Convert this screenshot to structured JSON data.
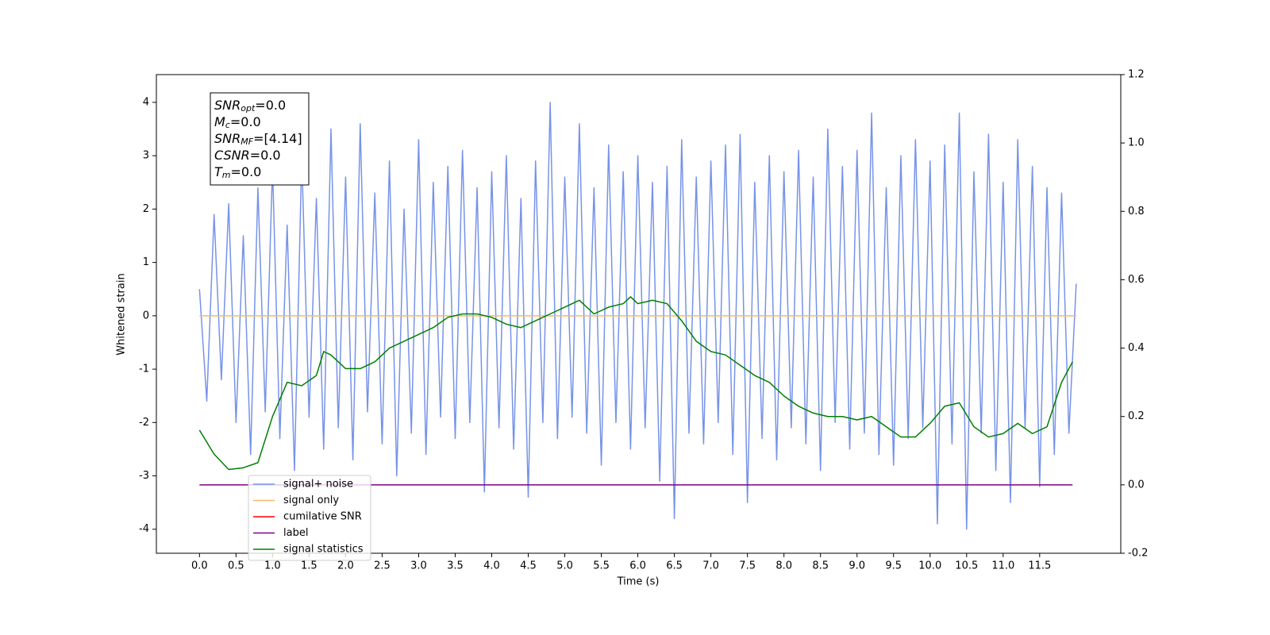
{
  "chart_data": {
    "type": "line",
    "xlabel": "Time (s)",
    "ylabel": "Whitened strain",
    "xlim": [
      -0.59,
      12.61
    ],
    "ylim": [
      -4.45,
      4.52
    ],
    "y2lim": [
      -0.2,
      1.2
    ],
    "xticks": [
      {
        "value": 0,
        "label": "0.0"
      },
      0.5,
      {
        "value": 1,
        "label": "1.0"
      },
      1.5,
      {
        "value": 2,
        "label": "2.0"
      },
      2.5,
      {
        "value": 3,
        "label": "3.0"
      },
      3.5,
      {
        "value": 4,
        "label": "4.0"
      },
      4.5,
      {
        "value": 5,
        "label": "5.0"
      },
      5.5,
      {
        "value": 6,
        "label": "6.0"
      },
      6.5,
      {
        "value": 7,
        "label": "7.0"
      },
      7.5,
      {
        "value": 8,
        "label": "8.0"
      },
      8.5,
      {
        "value": 9,
        "label": "9.0"
      },
      9.5,
      {
        "value": 10,
        "label": "10.0"
      },
      10.5,
      {
        "value": 11,
        "label": "11.0"
      },
      11.5
    ],
    "yticks": [
      -4,
      -3,
      -2,
      -1,
      0,
      1,
      2,
      3,
      4
    ],
    "y2ticks": [
      -0.2,
      {
        "value": 0,
        "label": "0.0"
      },
      0.2,
      0.4,
      0.6,
      0.8,
      {
        "value": 1,
        "label": "1.0"
      },
      1.2
    ],
    "legend": "lower left",
    "annotations": [
      {
        "main": "SNR",
        "sub": "opt",
        "rest": "=0.0"
      },
      {
        "main": "M",
        "sub": "c",
        "rest": "=0.0"
      },
      {
        "main": "SNR",
        "sub": "MF",
        "rest": "=[4.14]"
      },
      {
        "main": "CSNR",
        "sub": "",
        "rest": "=0.0"
      },
      {
        "main": "T",
        "sub": "m",
        "rest": "=0.0"
      }
    ],
    "series": [
      {
        "name": "signal+ noise",
        "color": "#7793e8",
        "axis": "y",
        "x": [
          0,
          0.1,
          0.2,
          0.3,
          0.4,
          0.5,
          0.6,
          0.7,
          0.8,
          0.9,
          1,
          1.1,
          1.2,
          1.3,
          1.4,
          1.5,
          1.6,
          1.7,
          1.8,
          1.9,
          2,
          2.1,
          2.2,
          2.3,
          2.4,
          2.5,
          2.6,
          2.7,
          2.8,
          2.9,
          3,
          3.1,
          3.2,
          3.3,
          3.4,
          3.5,
          3.6,
          3.7,
          3.8,
          3.9,
          4,
          4.1,
          4.2,
          4.3,
          4.4,
          4.5,
          4.6,
          4.7,
          4.8,
          4.9,
          5,
          5.1,
          5.2,
          5.3,
          5.4,
          5.5,
          5.6,
          5.7,
          5.8,
          5.9,
          6,
          6.1,
          6.2,
          6.3,
          6.4,
          6.5,
          6.6,
          6.7,
          6.8,
          6.9,
          7,
          7.1,
          7.2,
          7.3,
          7.4,
          7.5,
          7.6,
          7.7,
          7.8,
          7.9,
          8,
          8.1,
          8.2,
          8.3,
          8.4,
          8.5,
          8.6,
          8.7,
          8.8,
          8.9,
          9,
          9.1,
          9.2,
          9.3,
          9.4,
          9.5,
          9.6,
          9.7,
          9.8,
          9.9,
          10,
          10.1,
          10.2,
          10.3,
          10.4,
          10.5,
          10.6,
          10.7,
          10.8,
          10.9,
          11,
          11.1,
          11.2,
          11.3,
          11.4,
          11.5,
          11.6,
          11.7,
          11.8,
          11.9,
          12
        ],
        "values": [
          0.5,
          -1.6,
          1.9,
          -1.2,
          2.1,
          -2.0,
          1.5,
          -2.6,
          2.4,
          -1.8,
          2.8,
          -2.3,
          1.7,
          -2.9,
          3.0,
          -1.9,
          2.2,
          -2.5,
          3.5,
          -2.1,
          2.6,
          -2.7,
          3.6,
          -1.8,
          2.3,
          -2.4,
          2.9,
          -3.0,
          2.0,
          -2.2,
          3.3,
          -2.6,
          2.5,
          -1.9,
          2.8,
          -2.3,
          3.1,
          -2.0,
          2.4,
          -3.3,
          2.7,
          -2.1,
          3.0,
          -2.5,
          2.2,
          -3.4,
          2.9,
          -2.0,
          4.0,
          -2.3,
          2.6,
          -1.9,
          3.6,
          -2.2,
          2.4,
          -2.8,
          3.2,
          -2.0,
          2.7,
          -2.5,
          3.0,
          -2.1,
          2.5,
          -3.1,
          2.8,
          -3.8,
          3.3,
          -2.2,
          2.6,
          -2.4,
          2.9,
          -2.0,
          3.2,
          -2.6,
          3.4,
          -3.5,
          2.5,
          -2.3,
          3.0,
          -2.7,
          2.7,
          -2.1,
          3.1,
          -2.4,
          2.6,
          -2.9,
          3.5,
          -2.0,
          2.8,
          -2.5,
          3.1,
          -2.2,
          3.8,
          -2.6,
          2.4,
          -2.8,
          3.0,
          -2.3,
          3.3,
          -2.1,
          2.9,
          -3.9,
          3.2,
          -2.4,
          3.8,
          -4.0,
          2.7,
          -2.2,
          3.4,
          -2.9,
          2.5,
          -3.5,
          3.3,
          -2.1,
          2.8,
          -3.2,
          2.4,
          -2.6,
          2.3,
          -2.2,
          0.6
        ]
      },
      {
        "name": "signal only",
        "color": "#f7b968",
        "axis": "y",
        "x": [
          0,
          12
        ],
        "values": [
          0,
          0
        ]
      },
      {
        "name": "cumilative SNR",
        "color": "#ff0000",
        "axis": "y",
        "x": [],
        "values": []
      },
      {
        "name": "label",
        "color": "#800080",
        "axis": "y2",
        "x": [
          0,
          11.95
        ],
        "values": [
          0,
          0
        ]
      },
      {
        "name": "signal statistics",
        "color": "#008000",
        "axis": "y2",
        "x": [
          0,
          0.2,
          0.4,
          0.6,
          0.8,
          1,
          1.2,
          1.4,
          1.6,
          1.7,
          1.8,
          2,
          2.2,
          2.4,
          2.6,
          2.8,
          3,
          3.2,
          3.4,
          3.6,
          3.8,
          4,
          4.2,
          4.4,
          4.6,
          4.8,
          5,
          5.2,
          5.4,
          5.6,
          5.8,
          5.9,
          6,
          6.2,
          6.4,
          6.6,
          6.8,
          7,
          7.2,
          7.4,
          7.6,
          7.8,
          8,
          8.2,
          8.4,
          8.6,
          8.8,
          9,
          9.2,
          9.4,
          9.6,
          9.8,
          10,
          10.2,
          10.4,
          10.6,
          10.8,
          11,
          11.2,
          11.4,
          11.6,
          11.8,
          11.95
        ],
        "values": [
          0.16,
          0.09,
          0.045,
          0.05,
          0.065,
          0.2,
          0.3,
          0.29,
          0.32,
          0.39,
          0.38,
          0.34,
          0.34,
          0.36,
          0.4,
          0.42,
          0.44,
          0.46,
          0.49,
          0.5,
          0.5,
          0.49,
          0.47,
          0.46,
          0.48,
          0.5,
          0.52,
          0.54,
          0.5,
          0.52,
          0.53,
          0.55,
          0.53,
          0.54,
          0.53,
          0.48,
          0.42,
          0.39,
          0.38,
          0.35,
          0.32,
          0.3,
          0.26,
          0.23,
          0.21,
          0.2,
          0.2,
          0.19,
          0.2,
          0.17,
          0.14,
          0.14,
          0.18,
          0.23,
          0.24,
          0.17,
          0.14,
          0.15,
          0.18,
          0.15,
          0.17,
          0.3,
          0.36
        ]
      }
    ]
  }
}
